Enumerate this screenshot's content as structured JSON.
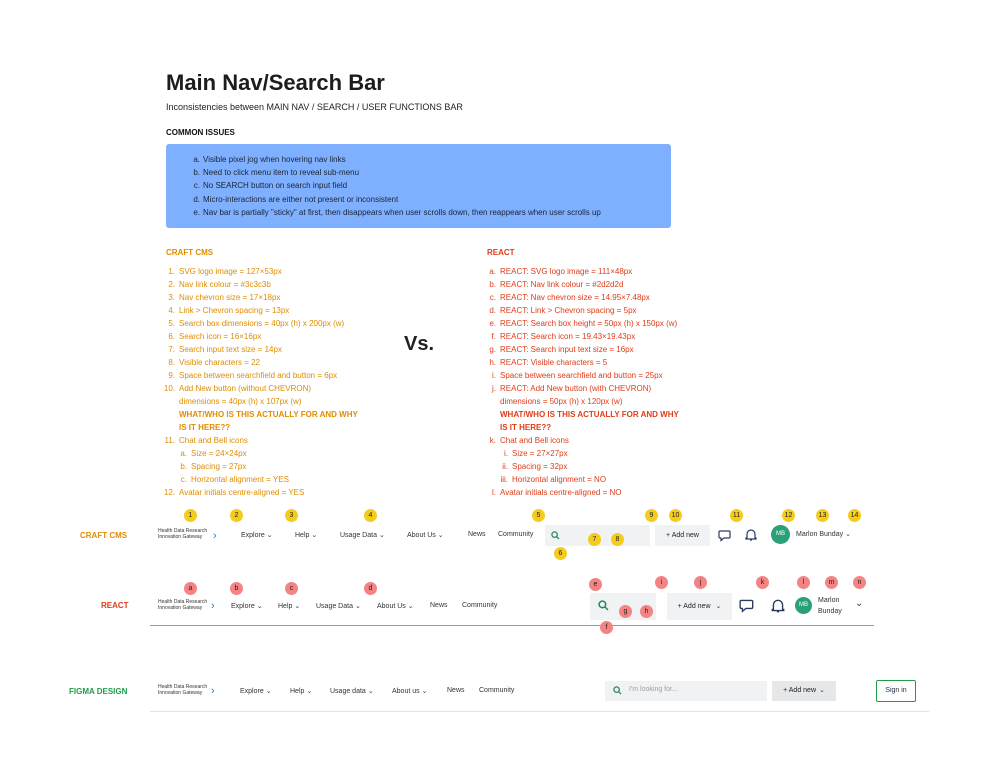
{
  "page": {
    "title": "Main Nav/Search Bar",
    "subtitle": "Inconsistencies between MAIN NAV / SEARCH / USER FUNCTIONS BAR",
    "common_heading": "COMMON ISSUES",
    "vs_label": "Vs."
  },
  "common_issues": [
    {
      "marker": "a.",
      "text": "Visible pixel jog when hovering nav links"
    },
    {
      "marker": "b.",
      "text": "Need to click menu item to reveal sub-menu"
    },
    {
      "marker": "c.",
      "text": "No SEARCH button on search input field"
    },
    {
      "marker": "d.",
      "text": "Micro-interactions are either not present or inconsistent"
    },
    {
      "marker": "e.",
      "text": "Nav bar is partially \"sticky\" at first, then disappears when user scrolls down, then reappears when user scrolls up"
    }
  ],
  "craft": {
    "heading": "CRAFT CMS",
    "color": "#e08d00",
    "items": [
      {
        "marker": "1.",
        "text": "SVG logo image = 127×53px"
      },
      {
        "marker": "2.",
        "text": "Nav link colour = #3c3c3b"
      },
      {
        "marker": "3.",
        "text": "Nav chevron size = 17×18px"
      },
      {
        "marker": "4.",
        "text": "Link > Chevron spacing = 13px"
      },
      {
        "marker": "5.",
        "text": "Search box dimensions = 40px (h) x 200px (w)"
      },
      {
        "marker": "6.",
        "text": "Search icon = 16×16px"
      },
      {
        "marker": "7.",
        "text": "Search input text size = 14px"
      },
      {
        "marker": "8.",
        "text": "Visible characters = 22"
      },
      {
        "marker": "9.",
        "text": "Space between searchfield and button = 6px"
      },
      {
        "marker": "10.",
        "text": "Add New button (without CHEVRON)"
      },
      {
        "marker": "",
        "text": "dimensions = 40px (h) x 107px (w)"
      },
      {
        "marker": "",
        "text": "WHAT/WHO IS THIS ACTUALLY FOR AND WHY",
        "bold": true
      },
      {
        "marker": "",
        "text": "IS IT HERE??",
        "bold": true
      },
      {
        "marker": "11.",
        "text": "Chat and Bell icons"
      },
      {
        "marker": "a.",
        "text": "Size = 24×24px",
        "indent": true
      },
      {
        "marker": "b.",
        "text": "Spacing = 27px",
        "indent": true
      },
      {
        "marker": "c.",
        "text": "Horizontal alignment = YES",
        "indent": true
      },
      {
        "marker": "12.",
        "text": "Avatar initials centre-aligned = YES"
      }
    ]
  },
  "react": {
    "heading": "REACT",
    "color": "#e03c18",
    "items": [
      {
        "marker": "a.",
        "text": "REACT: SVG logo image = 111×48px"
      },
      {
        "marker": "b.",
        "text": "REACT: Nav link colour = #2d2d2d"
      },
      {
        "marker": "c.",
        "text": "REACT: Nav chevron size = 14.95×7.48px"
      },
      {
        "marker": "d.",
        "text": "REACT: Link > Chevron spacing = 5px"
      },
      {
        "marker": "e.",
        "text": "REACT: Search box height = 50px (h) x 150px (w)"
      },
      {
        "marker": "f.",
        "text": "REACT: Search icon = 19.43×19.43px"
      },
      {
        "marker": "g.",
        "text": "REACT: Search input text size = 16px"
      },
      {
        "marker": "h.",
        "text": "REACT: Visible characters = 5"
      },
      {
        "marker": "i.",
        "text": "Space between searchfield and button = 25px"
      },
      {
        "marker": "j.",
        "text": "REACT: Add New button (with CHEVRON)"
      },
      {
        "marker": "",
        "text": "dimensions = 50px (h) x 120px (w)"
      },
      {
        "marker": "",
        "text": "WHAT/WHO IS THIS ACTUALLY FOR AND WHY",
        "bold": true
      },
      {
        "marker": "",
        "text": "IS IT HERE??",
        "bold": true
      },
      {
        "marker": "k.",
        "text": "Chat and Bell icons"
      },
      {
        "marker": "i.",
        "text": "Size = 27×27px",
        "indent": true
      },
      {
        "marker": "ii.",
        "text": "Spacing = 32px",
        "indent": true
      },
      {
        "marker": "iii.",
        "text": "Horizontal alignment = NO",
        "indent": true
      },
      {
        "marker": "l.",
        "text": "Avatar initials centre-aligned = NO"
      }
    ]
  },
  "logo": {
    "line1": "Health Data Research",
    "line2": "Innovation Gateway"
  },
  "nav_craft": {
    "label": "CRAFT CMS",
    "links": [
      "Explore",
      "Help",
      "Usage Data",
      "About Us",
      "News",
      "Community"
    ],
    "add_new": "+ Add new",
    "avatar": "MB",
    "user": "Marlon Bunday",
    "badges": [
      "1",
      "2",
      "3",
      "4",
      "5",
      "6",
      "7",
      "8",
      "9",
      "10",
      "11",
      "12",
      "13",
      "14"
    ]
  },
  "nav_react": {
    "label": "REACT",
    "links": [
      "Explore",
      "Help",
      "Usage Data",
      "About Us",
      "News",
      "Community"
    ],
    "add_new": "+ Add new",
    "avatar": "MB",
    "user_first": "Marlon",
    "user_last": "Bunday",
    "badges": [
      "a",
      "b",
      "c",
      "d",
      "e",
      "f",
      "g",
      "h",
      "i",
      "j",
      "k",
      "l",
      "m",
      "n"
    ]
  },
  "nav_figma": {
    "label": "FIGMA DESIGN",
    "links": [
      "Explore",
      "Help",
      "Usage data",
      "About us",
      "News",
      "Community"
    ],
    "search_placeholder": "I'm looking for...",
    "add_new": "+ Add new",
    "sign_in": "Sign in"
  },
  "colors": {
    "craft": "#e08d00",
    "react": "#e03c18",
    "figma": "#1e9e4a",
    "issues_bg": "#7fb0ff",
    "yellow_badge": "#f5cc1e",
    "red_badge": "#f48383",
    "avatar": "#2aa079"
  }
}
